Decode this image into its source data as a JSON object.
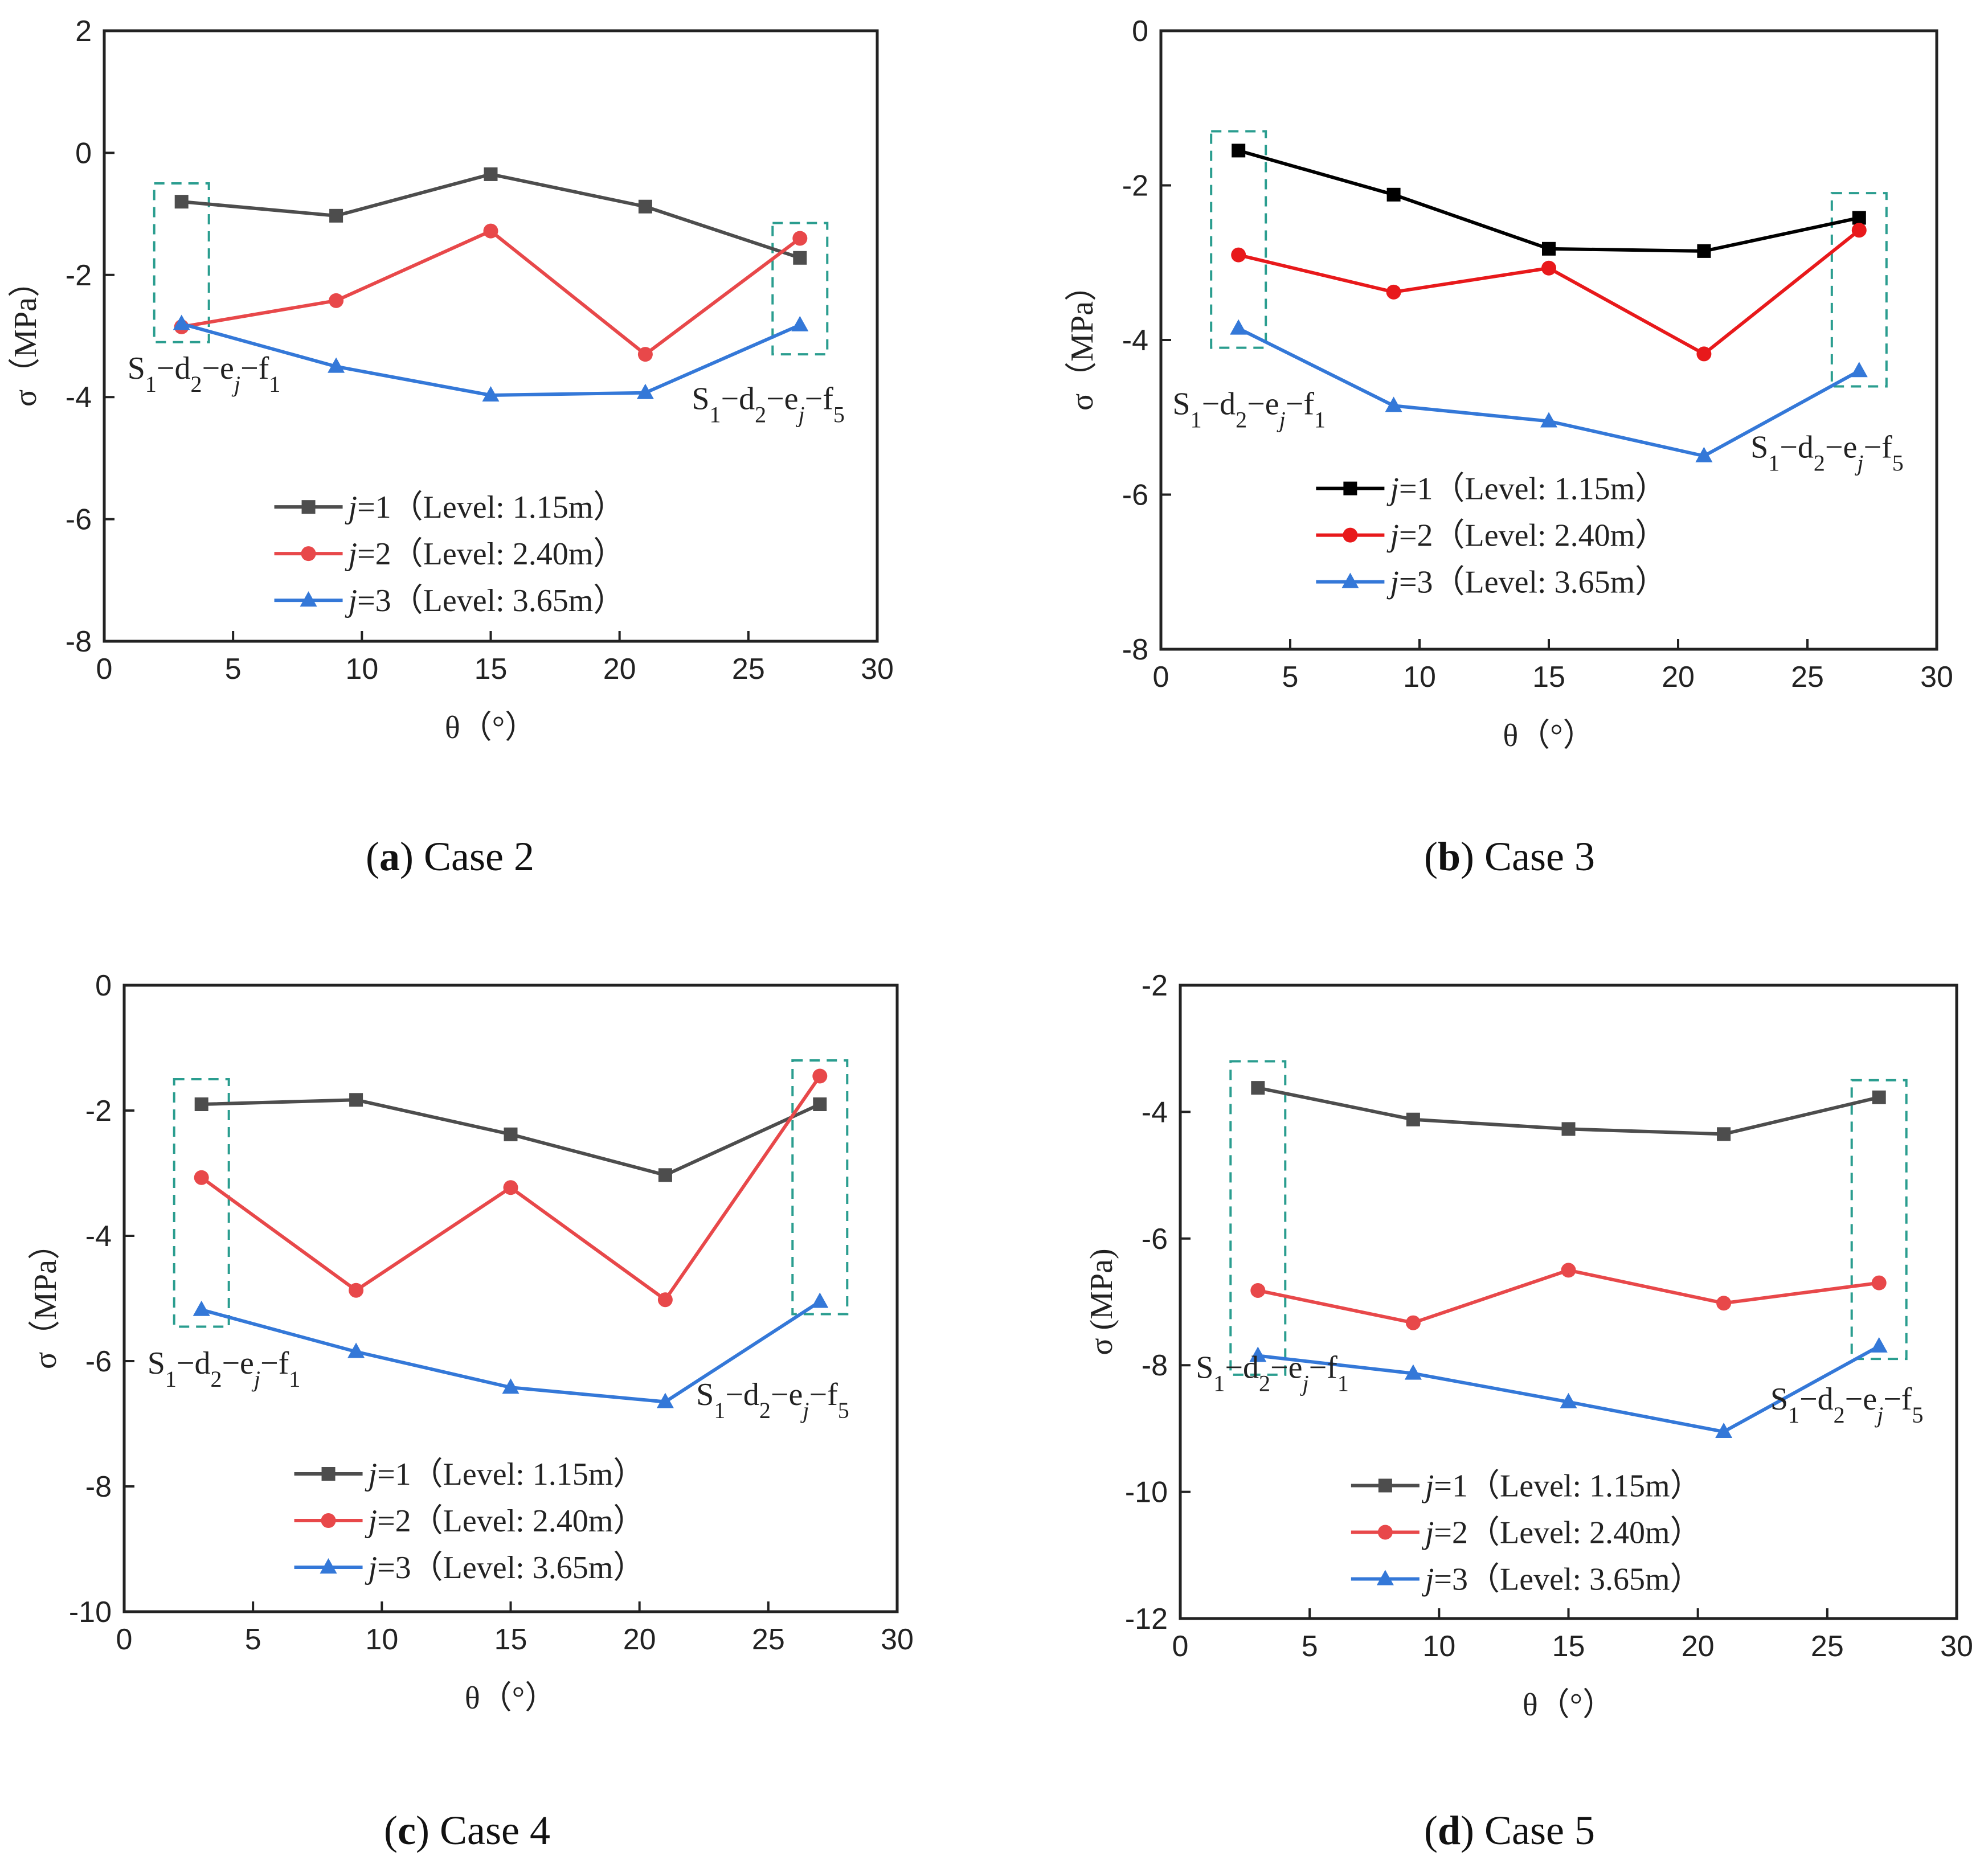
{
  "chart_data": [
    {
      "type": "line",
      "caption_letter": "a",
      "caption_text": "Case 2",
      "xlabel": "θ（°）",
      "ylabel": "σ（MPa）",
      "xlim": [
        0,
        30
      ],
      "ylim": [
        -8,
        2
      ],
      "xticks": [
        0,
        5,
        10,
        15,
        20,
        25,
        30
      ],
      "yticks": [
        -8,
        -6,
        -4,
        -2,
        0,
        2
      ],
      "x": [
        3,
        9,
        15,
        21,
        27
      ],
      "series": [
        {
          "name": "j=1（Level: 1.15m）",
          "italic": "j",
          "rest": "=1（Level: 1.15m）",
          "marker": "square",
          "color": "#4d4d4d",
          "values": [
            -0.8,
            -1.03,
            -0.35,
            -0.88,
            -1.72
          ]
        },
        {
          "name": "j=2（Level: 2.40m）",
          "italic": "j",
          "rest": "=2（Level: 2.40m）",
          "marker": "circle",
          "color": "#e8484a",
          "values": [
            -2.85,
            -2.42,
            -1.28,
            -3.3,
            -1.4
          ]
        },
        {
          "name": "j=3（Level: 3.65m）",
          "italic": "j",
          "rest": "=3（Level: 3.65m）",
          "marker": "triangle",
          "color": "#3478d8",
          "values": [
            -2.8,
            -3.5,
            -3.97,
            -3.93,
            -2.82
          ]
        }
      ],
      "annotations": {
        "left": "S1−d2−ej−f1",
        "right": "S1−d2−ej−f5"
      },
      "boxes": {
        "left": [
          -0.5,
          -3.1
        ],
        "right": [
          -1.15,
          -3.3
        ]
      }
    },
    {
      "type": "line",
      "caption_letter": "b",
      "caption_text": "Case 3",
      "xlabel": "θ（°）",
      "ylabel": "σ（MPa）",
      "xlim": [
        0,
        30
      ],
      "ylim": [
        -8,
        0
      ],
      "xticks": [
        0,
        5,
        10,
        15,
        20,
        25,
        30
      ],
      "yticks": [
        -8,
        -6,
        -4,
        -2,
        0
      ],
      "x": [
        3,
        9,
        15,
        21,
        27
      ],
      "series": [
        {
          "name": "j=1（Level: 1.15m）",
          "italic": "j",
          "rest": "=1（Level: 1.15m）",
          "marker": "square",
          "color": "#000000",
          "values": [
            -1.55,
            -2.12,
            -2.82,
            -2.85,
            -2.42
          ]
        },
        {
          "name": "j=2（Level: 2.40m）",
          "italic": "j",
          "rest": "=2（Level: 2.40m）",
          "marker": "circle",
          "color": "#e8191b",
          "values": [
            -2.9,
            -3.38,
            -3.07,
            -4.18,
            -2.58
          ]
        },
        {
          "name": "j=3（Level: 3.65m）",
          "italic": "j",
          "rest": "=3（Level: 3.65m）",
          "marker": "triangle",
          "color": "#3478d8",
          "values": [
            -3.85,
            -4.85,
            -5.05,
            -5.5,
            -4.4
          ]
        }
      ],
      "annotations": {
        "left": "S1−d2−ej−f1",
        "right": "S1−d2−ej−f5"
      },
      "boxes": {
        "left": [
          -1.3,
          -4.1
        ],
        "right": [
          -2.1,
          -4.6
        ]
      }
    },
    {
      "type": "line",
      "caption_letter": "c",
      "caption_text": "Case 4",
      "xlabel": "θ（°）",
      "ylabel": "σ（MPa）",
      "xlim": [
        0,
        30
      ],
      "ylim": [
        -10,
        0
      ],
      "xticks": [
        0,
        5,
        10,
        15,
        20,
        25,
        30
      ],
      "yticks": [
        -10,
        -8,
        -6,
        -4,
        -2,
        0
      ],
      "x": [
        3,
        9,
        15,
        21,
        27
      ],
      "series": [
        {
          "name": "j=1（Level: 1.15m）",
          "italic": "j",
          "rest": "=1（Level: 1.15m）",
          "marker": "square",
          "color": "#4d4d4d",
          "values": [
            -1.9,
            -1.83,
            -2.38,
            -3.03,
            -1.9
          ]
        },
        {
          "name": "j=2（Level: 2.40m）",
          "italic": "j",
          "rest": "=2（Level: 2.40m）",
          "marker": "circle",
          "color": "#e8484a",
          "values": [
            -3.07,
            -4.87,
            -3.23,
            -5.02,
            -1.45
          ]
        },
        {
          "name": "j=3（Level: 3.65m）",
          "italic": "j",
          "rest": "=3（Level: 3.65m）",
          "marker": "triangle",
          "color": "#3478d8",
          "values": [
            -5.18,
            -5.85,
            -6.42,
            -6.65,
            -5.05
          ]
        }
      ],
      "annotations": {
        "left": "S1−d2−ej−f1",
        "right": "S1−d2−ej−f5"
      },
      "boxes": {
        "left": [
          -1.5,
          -5.45
        ],
        "right": [
          -1.2,
          -5.25
        ]
      }
    },
    {
      "type": "line",
      "caption_letter": "d",
      "caption_text": "Case 5",
      "xlabel": "θ（°）",
      "ylabel": "σ (MPa)",
      "xlim": [
        0,
        30
      ],
      "ylim": [
        -12,
        -2
      ],
      "xticks": [
        0,
        5,
        10,
        15,
        20,
        25,
        30
      ],
      "yticks": [
        -12,
        -10,
        -8,
        -6,
        -4,
        -2
      ],
      "x": [
        3,
        9,
        15,
        21,
        27
      ],
      "series": [
        {
          "name": "j=1（Level: 1.15m）",
          "italic": "j",
          "rest": "=1（Level: 1.15m）",
          "marker": "square",
          "color": "#4d4d4d",
          "values": [
            -3.62,
            -4.12,
            -4.27,
            -4.35,
            -3.77
          ]
        },
        {
          "name": "j=2（Level: 2.40m）",
          "italic": "j",
          "rest": "=2（Level: 2.40m）",
          "marker": "circle",
          "color": "#e8484a",
          "values": [
            -6.82,
            -7.33,
            -6.5,
            -7.02,
            -6.7
          ]
        },
        {
          "name": "j=3（Level: 3.65m）",
          "italic": "j",
          "rest": "=3（Level: 3.65m）",
          "marker": "triangle",
          "color": "#3478d8",
          "values": [
            -7.85,
            -8.13,
            -8.58,
            -9.05,
            -7.7
          ]
        }
      ],
      "annotations": {
        "left": "S1−d2−ej−f1",
        "right": "S1−d2−ej−f5"
      },
      "boxes": {
        "left": [
          -3.2,
          -8.15
        ],
        "right": [
          -3.5,
          -7.9
        ]
      }
    }
  ]
}
